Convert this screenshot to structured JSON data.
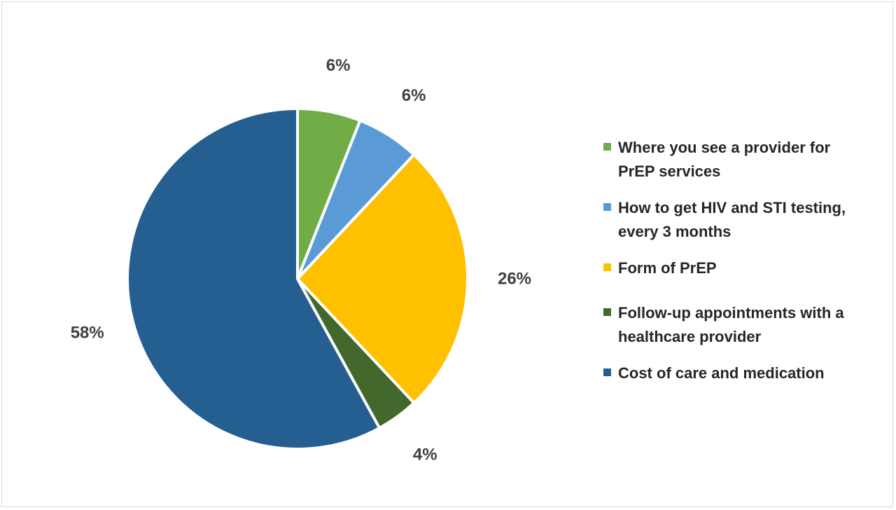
{
  "chart_data": {
    "type": "pie",
    "title": "",
    "slices": [
      {
        "label": "Where you see a provider for PrEP services",
        "value": 6,
        "display": "6%",
        "color": "#70ad47"
      },
      {
        "label": "How to get HIV and STI testing, every 3 months",
        "value": 6,
        "display": "6%",
        "color": "#5b9bd5"
      },
      {
        "label": "Form of PrEP",
        "value": 26,
        "display": "26%",
        "color": "#ffc000"
      },
      {
        "label": "Follow-up appointments with a healthcare provider",
        "value": 4,
        "display": "4%",
        "color": "#43682b"
      },
      {
        "label": "Cost of care and medication",
        "value": 58,
        "display": "58%",
        "color": "#255e91"
      }
    ],
    "start_angle": "12 o'clock, clockwise",
    "legend_position": "right",
    "data_labels": "outside end"
  },
  "legend": {
    "items": [
      {
        "line1": "Where you see a provider for",
        "line2": "PrEP services",
        "color": "#70ad47"
      },
      {
        "line1": "How to get HIV and STI testing,",
        "line2": "every 3 months",
        "color": "#5b9bd5"
      },
      {
        "line1": "Form of PrEP",
        "line2": "",
        "color": "#ffc000"
      },
      {
        "line1": "Follow-up appointments with a",
        "line2": "healthcare provider",
        "color": "#43682b"
      },
      {
        "line1": "Cost of care and medication",
        "line2": "",
        "color": "#255e91"
      }
    ]
  }
}
